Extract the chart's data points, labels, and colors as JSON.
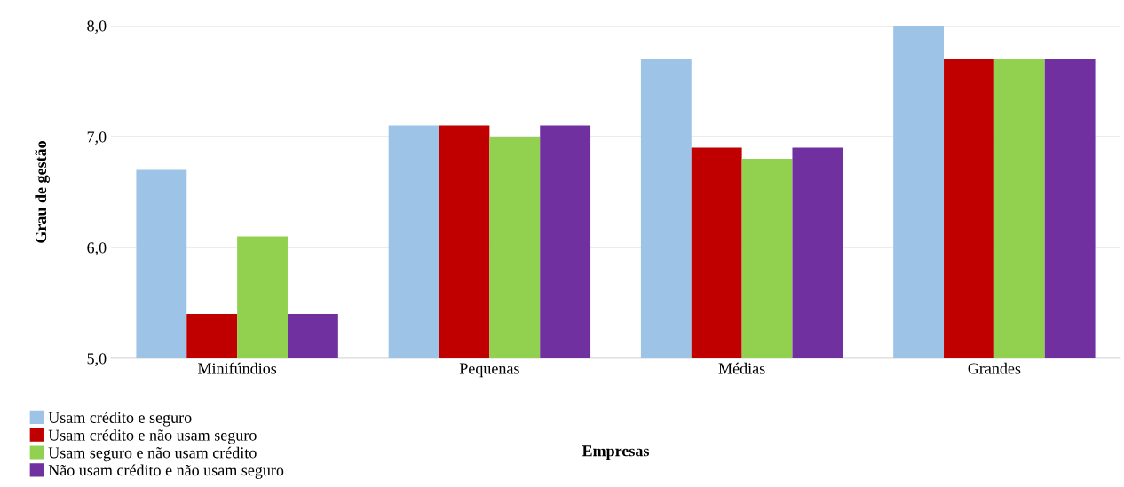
{
  "chart_data": {
    "type": "bar",
    "xlabel": "Empresas",
    "ylabel": "Grau de gestão",
    "categories": [
      "Minifúndios",
      "Pequenas",
      "Médias",
      "Grandes"
    ],
    "series": [
      {
        "name": "Usam crédito e seguro",
        "color": "#9dc3e6",
        "values": [
          6.7,
          7.1,
          7.7,
          8.0
        ]
      },
      {
        "name": "Usam crédito e não usam seguro",
        "color": "#c00000",
        "values": [
          5.4,
          7.1,
          6.9,
          7.7
        ]
      },
      {
        "name": "Usam seguro e não usam crédito",
        "color": "#92d050",
        "values": [
          6.1,
          7.0,
          6.8,
          7.7
        ]
      },
      {
        "name": "Não usam crédito e não usam seguro",
        "color": "#7030a0",
        "values": [
          5.4,
          7.1,
          6.9,
          7.7
        ]
      }
    ],
    "ylim": [
      5,
      8
    ],
    "yticks": [
      {
        "value": 5,
        "label": "5,0"
      },
      {
        "value": 6,
        "label": "6,0"
      },
      {
        "value": 7,
        "label": "7,0"
      },
      {
        "value": 8,
        "label": "8,0"
      }
    ],
    "grid": "y",
    "legend": "bottom left"
  }
}
